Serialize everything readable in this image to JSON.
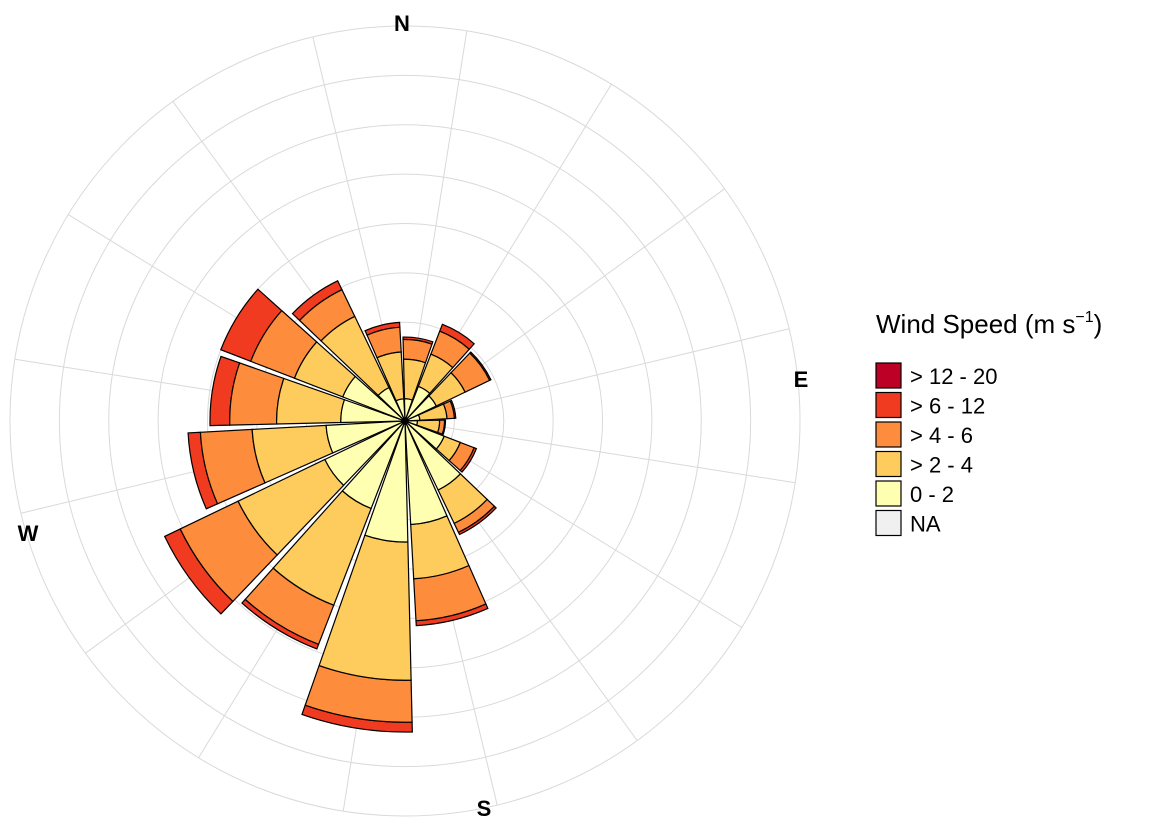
{
  "chart_data": {
    "type": "polar-bar",
    "subtype": "wind-rose",
    "title": "",
    "legend": {
      "title_main": "Wind Speed (m s",
      "title_sup": "−1",
      "title_end": ")",
      "placement": "right",
      "entries": [
        {
          "label": "> 12 - 20",
          "color": "#bd0026"
        },
        {
          "label": "> 6 - 12",
          "color": "#f03b20"
        },
        {
          "label": "> 4 - 6",
          "color": "#fd8d3c"
        },
        {
          "label": "> 2 - 4",
          "color": "#fecc5c"
        },
        {
          "label": "0 - 2",
          "color": "#ffffb2"
        },
        {
          "label": "NA",
          "color": "#f0f0f0"
        }
      ]
    },
    "cardinals": {
      "N": "N",
      "E": "E",
      "S": "S",
      "W": "W"
    },
    "rotation_deg": 9,
    "ring_max": 8,
    "ring_step": 1,
    "grid": true,
    "spoke_step_deg": 22.5,
    "direction_step_deg": 22.5,
    "directions_deg": [
      0,
      22.5,
      45,
      67.5,
      90,
      112.5,
      135,
      157.5,
      180,
      202.5,
      225,
      247.5,
      270,
      292.5,
      315,
      337.5
    ],
    "bins": [
      "0 - 2",
      "> 2 - 4",
      "> 4 - 6",
      "> 6 - 12",
      "> 12 - 20"
    ],
    "cumulative_frequency": [
      [
        0.45,
        1.25,
        1.65,
        1.7,
        1.7
      ],
      [
        0.75,
        1.45,
        1.95,
        2.1,
        2.1
      ],
      [
        0.7,
        1.35,
        1.9,
        1.93,
        1.93
      ],
      [
        0.3,
        0.85,
        1.0,
        1.03,
        1.03
      ],
      [
        0.25,
        0.7,
        0.8,
        0.82,
        0.82
      ],
      [
        0.85,
        1.2,
        1.5,
        1.55,
        1.55
      ],
      [
        1.55,
        2.3,
        2.5,
        2.55,
        2.55
      ],
      [
        2.1,
        3.2,
        4.05,
        4.15,
        4.15
      ],
      [
        2.45,
        5.25,
        6.1,
        6.3,
        6.3
      ],
      [
        1.9,
        4.0,
        4.85,
        4.95,
        4.95
      ],
      [
        1.8,
        3.75,
        5.05,
        5.4,
        5.4
      ],
      [
        1.6,
        3.1,
        4.15,
        4.4,
        4.4
      ],
      [
        1.3,
        2.6,
        3.55,
        3.95,
        3.95
      ],
      [
        1.35,
        2.4,
        3.35,
        4.0,
        4.0
      ],
      [
        0.75,
        2.35,
        2.95,
        3.15,
        3.15
      ],
      [
        0.45,
        1.4,
        1.9,
        2.0,
        2.0
      ]
    ]
  }
}
